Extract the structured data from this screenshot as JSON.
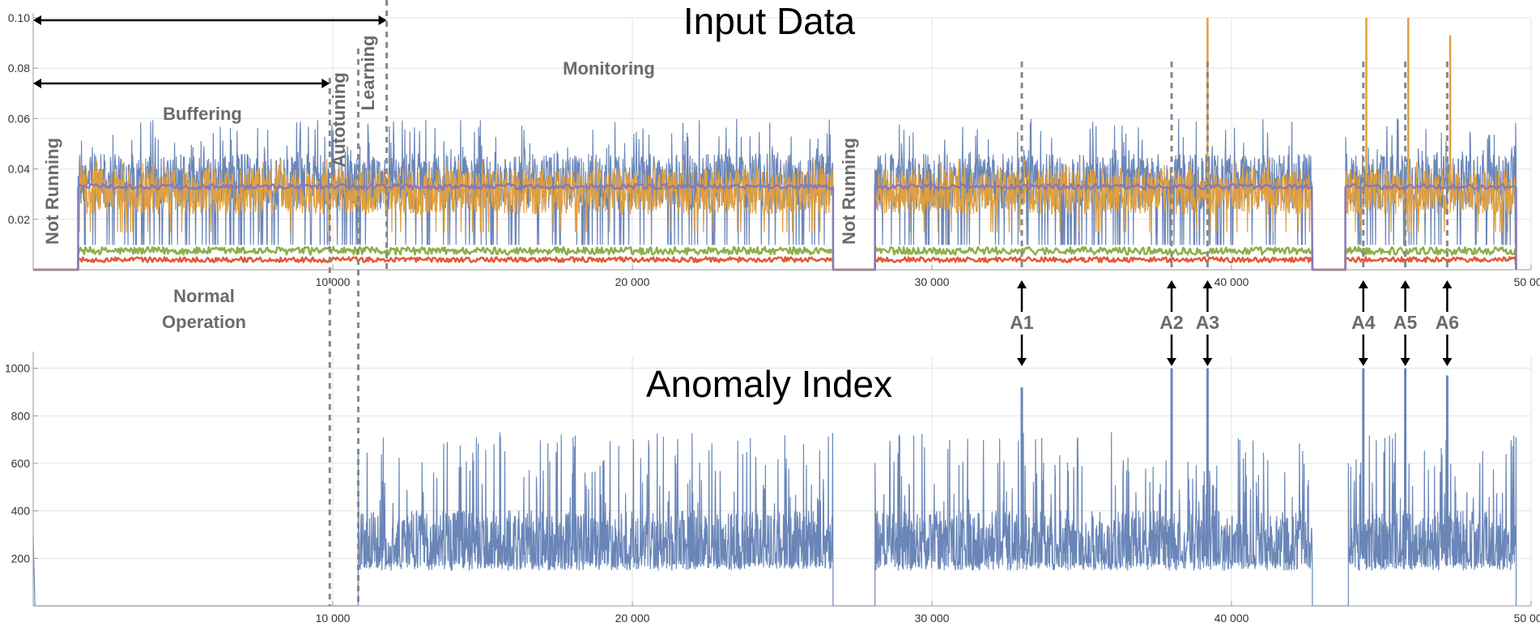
{
  "chart_data": [
    {
      "type": "line",
      "title": "Input Data",
      "x_range": [
        0,
        50000
      ],
      "ylim": [
        0,
        0.1
      ],
      "x_ticks": [
        10000,
        20000,
        30000,
        40000,
        50000
      ],
      "x_tick_labels": [
        "10 000",
        "20 000",
        "30 000",
        "40 000",
        "50 000"
      ],
      "y_ticks": [
        0.02,
        0.04,
        0.06,
        0.08,
        0.1
      ],
      "y_tick_labels": [
        "0.02",
        "0.04",
        "0.06",
        "0.08",
        "0.10"
      ],
      "grid": true,
      "running_intervals": [
        [
          1500,
          26700
        ],
        [
          28100,
          42700
        ],
        [
          43800,
          49500
        ]
      ],
      "series": [
        {
          "color": "#6a86b8",
          "typical_range": [
            0.02,
            0.05
          ],
          "min": 0.01,
          "max": 0.06
        },
        {
          "color": "#e0a040",
          "typical_range": [
            0.022,
            0.04
          ],
          "spikes": [
            {
              "x": 39200,
              "y": 0.1
            },
            {
              "x": 44500,
              "y": 0.1
            },
            {
              "x": 45900,
              "y": 0.1
            },
            {
              "x": 47300,
              "y": 0.093
            }
          ]
        },
        {
          "color": "#8a78b8",
          "typical_range": [
            0.032,
            0.034
          ]
        },
        {
          "color": "#8ab04a",
          "typical_range": [
            0.006,
            0.009
          ]
        },
        {
          "color": "#e05a3a",
          "typical_range": [
            0.003,
            0.005
          ]
        }
      ],
      "phase_labels": [
        "Buffering",
        "Monitoring",
        "Autotuning",
        "Learning",
        "Not Running",
        "Not Running",
        "Normal Operation"
      ],
      "phase_spans": {
        "buffering": [
          0,
          9900
        ],
        "monitoring": [
          0,
          11800
        ]
      },
      "phase_markers": [
        9900,
        10850,
        11800
      ]
    },
    {
      "type": "line",
      "title": "Anomaly Index",
      "x_range": [
        0,
        50000
      ],
      "ylim": [
        0,
        1050
      ],
      "x_ticks": [
        10000,
        20000,
        30000,
        40000,
        50000
      ],
      "x_tick_labels": [
        "10 000",
        "20 000",
        "30 000",
        "40 000",
        "50 000"
      ],
      "y_ticks": [
        200,
        400,
        600,
        800,
        1000
      ],
      "y_tick_labels": [
        "200",
        "400",
        "600",
        "800",
        "1000"
      ],
      "grid": true,
      "active_intervals": [
        [
          10850,
          26700
        ],
        [
          28100,
          42700
        ],
        [
          43900,
          49500
        ]
      ],
      "typical_range": [
        150,
        550
      ],
      "anomalies": [
        {
          "label": "A1",
          "x": 33000,
          "y": 920
        },
        {
          "label": "A2",
          "x": 38000,
          "y": 1000
        },
        {
          "label": "A3",
          "x": 39200,
          "y": 1000
        },
        {
          "label": "A4",
          "x": 44400,
          "y": 1000
        },
        {
          "label": "A5",
          "x": 45800,
          "y": 1000
        },
        {
          "label": "A6",
          "x": 47200,
          "y": 970
        }
      ],
      "series": [
        {
          "color": "#6a86b8"
        }
      ]
    }
  ],
  "text": {
    "normal_operation_line1": "Normal",
    "normal_operation_line2": "Operation"
  },
  "colors": {
    "grid": "#e3e3e3",
    "axis": "#999999",
    "marker": "#888888",
    "arrow": "#000000"
  }
}
